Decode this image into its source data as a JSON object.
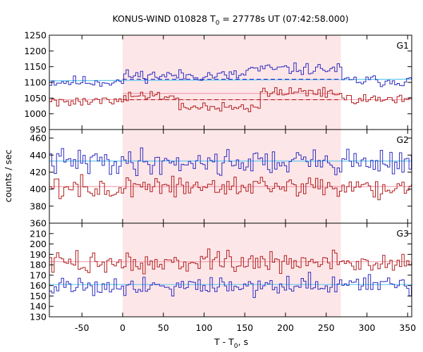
{
  "chart_data": {
    "type": "line",
    "title": {
      "main": "KONUS-WIND 010828 T",
      "sub": "0",
      "rest": " = 27778s UT (07:42:58.000)"
    },
    "xlabel": {
      "main": "T - T",
      "sub": "0",
      "rest": ", s"
    },
    "ylabel": "counts / sec",
    "xlim": [
      -90,
      355
    ],
    "xticks": [
      -50,
      0,
      50,
      100,
      150,
      200,
      250,
      300,
      350
    ],
    "highlight_interval": [
      0,
      268
    ],
    "colors": {
      "highlight": "#fde6e8",
      "blue": "#2b2bbf",
      "red": "#b01c1c",
      "blue_fit": "#5fc9f0",
      "red_fit": "#f2a1b0"
    },
    "bin_width": 2.944,
    "x_start": -90,
    "panels": [
      {
        "label": "G1",
        "ylim": [
          950,
          1250
        ],
        "yticks": [
          950,
          1000,
          1050,
          1100,
          1150,
          1200,
          1250
        ],
        "series": [
          {
            "color": "blue",
            "segments": [
              [
                -90,
                0,
                1102
              ],
              [
                0,
                150,
                1122
              ],
              [
                150,
                268,
                1142
              ],
              [
                268,
                355,
                1105
              ]
            ],
            "noise": 16,
            "seed": 11,
            "fit": [
              [
                -90,
                1105,
                355,
                1110
              ]
            ],
            "dashed": [
              [
                0,
                1110,
                268,
                1110
              ]
            ]
          },
          {
            "color": "red",
            "segments": [
              [
                -90,
                0,
                1042
              ],
              [
                0,
                70,
                1058
              ],
              [
                70,
                170,
                1020
              ],
              [
                170,
                268,
                1068
              ],
              [
                268,
                355,
                1048
              ]
            ],
            "noise": 14,
            "seed": 27,
            "fit": [
              [
                -90,
                1045,
                355,
                1045
              ]
            ],
            "dashed": [
              [
                0,
                1045,
                268,
                1045
              ]
            ],
            "fit_highlight": [
              [
                0,
                1065,
                268,
                1065
              ]
            ]
          }
        ]
      },
      {
        "label": "G2",
        "ylim": [
          360,
          470
        ],
        "yticks": [
          360,
          380,
          400,
          420,
          440,
          460
        ],
        "series": [
          {
            "color": "blue",
            "segments": [
              [
                -90,
                355,
                432
              ]
            ],
            "noise": 13,
            "seed": 41,
            "fit": [
              [
                -90,
                433,
                355,
                433
              ]
            ]
          },
          {
            "color": "red",
            "segments": [
              [
                -90,
                355,
                402
              ]
            ],
            "noise": 11,
            "seed": 57,
            "fit": [
              [
                -90,
                403,
                355,
                403
              ]
            ]
          }
        ]
      },
      {
        "label": "G3",
        "ylim": [
          130,
          220
        ],
        "yticks": [
          130,
          140,
          150,
          160,
          170,
          180,
          190,
          200,
          210
        ],
        "series": [
          {
            "color": "red",
            "segments": [
              [
                -90,
                355,
                182
              ]
            ],
            "noise": 9,
            "seed": 73,
            "fit": [
              [
                -90,
                183,
                355,
                183
              ]
            ]
          },
          {
            "color": "blue",
            "segments": [
              [
                -90,
                355,
                160
              ]
            ],
            "noise": 8,
            "seed": 91,
            "fit": [
              [
                -90,
                161,
                355,
                161
              ]
            ]
          }
        ]
      }
    ]
  }
}
